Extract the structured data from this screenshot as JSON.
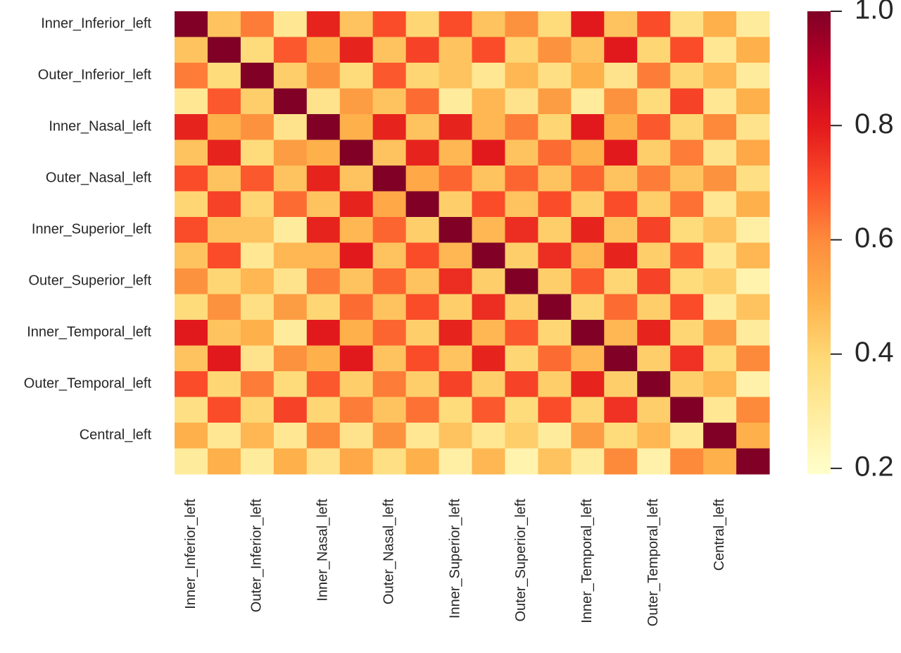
{
  "chart_data": {
    "type": "heatmap",
    "colormap": "YlOrRd",
    "categories": [
      "Inner_Inferior_left",
      null,
      "Outer_Inferior_left",
      null,
      "Inner_Nasal_left",
      null,
      "Outer_Nasal_left",
      null,
      "Inner_Superior_left",
      null,
      "Outer_Superior_left",
      null,
      "Inner_Temporal_left",
      null,
      "Outer_Temporal_left",
      null,
      "Central_left",
      null
    ],
    "values": [
      [
        1,
        0.45,
        0.62,
        0.32,
        0.78,
        0.45,
        0.7,
        0.4,
        0.7,
        0.45,
        0.58,
        0.38,
        0.8,
        0.45,
        0.7,
        0.36,
        0.5,
        0.3
      ],
      [
        0.45,
        1,
        0.38,
        0.68,
        0.5,
        0.78,
        0.45,
        0.72,
        0.45,
        0.7,
        0.4,
        0.58,
        0.45,
        0.8,
        0.4,
        0.7,
        0.32,
        0.5
      ],
      [
        0.62,
        0.38,
        1,
        0.42,
        0.58,
        0.38,
        0.68,
        0.4,
        0.45,
        0.32,
        0.48,
        0.36,
        0.5,
        0.34,
        0.62,
        0.4,
        0.48,
        0.3
      ],
      [
        0.32,
        0.68,
        0.42,
        1,
        0.34,
        0.55,
        0.45,
        0.65,
        0.3,
        0.48,
        0.34,
        0.55,
        0.3,
        0.58,
        0.38,
        0.72,
        0.32,
        0.5
      ],
      [
        0.78,
        0.5,
        0.58,
        0.34,
        1,
        0.5,
        0.78,
        0.45,
        0.78,
        0.48,
        0.62,
        0.4,
        0.8,
        0.5,
        0.68,
        0.4,
        0.6,
        0.34
      ],
      [
        0.45,
        0.78,
        0.38,
        0.55,
        0.5,
        1,
        0.45,
        0.78,
        0.48,
        0.8,
        0.45,
        0.65,
        0.5,
        0.8,
        0.42,
        0.62,
        0.34,
        0.52
      ],
      [
        0.7,
        0.45,
        0.68,
        0.45,
        0.78,
        0.45,
        1,
        0.52,
        0.66,
        0.45,
        0.66,
        0.45,
        0.66,
        0.45,
        0.62,
        0.45,
        0.58,
        0.36
      ],
      [
        0.4,
        0.72,
        0.4,
        0.65,
        0.45,
        0.78,
        0.52,
        1,
        0.42,
        0.7,
        0.45,
        0.7,
        0.42,
        0.7,
        0.42,
        0.64,
        0.32,
        0.5
      ],
      [
        0.7,
        0.45,
        0.45,
        0.3,
        0.78,
        0.48,
        0.66,
        0.42,
        1,
        0.48,
        0.76,
        0.42,
        0.78,
        0.45,
        0.72,
        0.38,
        0.45,
        0.28
      ],
      [
        0.45,
        0.7,
        0.32,
        0.48,
        0.48,
        0.8,
        0.45,
        0.7,
        0.48,
        1,
        0.42,
        0.76,
        0.48,
        0.78,
        0.42,
        0.68,
        0.32,
        0.48
      ],
      [
        0.58,
        0.4,
        0.48,
        0.34,
        0.62,
        0.45,
        0.66,
        0.45,
        0.76,
        0.42,
        1,
        0.42,
        0.68,
        0.4,
        0.72,
        0.38,
        0.42,
        0.26
      ],
      [
        0.38,
        0.58,
        0.36,
        0.55,
        0.4,
        0.65,
        0.45,
        0.7,
        0.42,
        0.76,
        0.42,
        1,
        0.4,
        0.65,
        0.42,
        0.7,
        0.3,
        0.45
      ],
      [
        0.8,
        0.45,
        0.5,
        0.3,
        0.8,
        0.5,
        0.66,
        0.42,
        0.78,
        0.48,
        0.68,
        0.4,
        1,
        0.48,
        0.78,
        0.4,
        0.55,
        0.3
      ],
      [
        0.45,
        0.8,
        0.34,
        0.58,
        0.5,
        0.8,
        0.45,
        0.7,
        0.45,
        0.78,
        0.4,
        0.65,
        0.48,
        1,
        0.42,
        0.75,
        0.38,
        0.6
      ],
      [
        0.7,
        0.4,
        0.62,
        0.38,
        0.68,
        0.42,
        0.62,
        0.42,
        0.72,
        0.42,
        0.72,
        0.42,
        0.78,
        0.42,
        1,
        0.42,
        0.48,
        0.27
      ],
      [
        0.36,
        0.7,
        0.4,
        0.72,
        0.4,
        0.62,
        0.45,
        0.64,
        0.38,
        0.68,
        0.38,
        0.7,
        0.4,
        0.75,
        0.42,
        1,
        0.32,
        0.6
      ],
      [
        0.5,
        0.32,
        0.48,
        0.32,
        0.6,
        0.34,
        0.58,
        0.32,
        0.45,
        0.32,
        0.42,
        0.3,
        0.55,
        0.38,
        0.48,
        0.32,
        1,
        0.5
      ],
      [
        0.3,
        0.5,
        0.3,
        0.5,
        0.34,
        0.52,
        0.36,
        0.5,
        0.28,
        0.48,
        0.26,
        0.45,
        0.3,
        0.6,
        0.27,
        0.6,
        0.5,
        1
      ]
    ],
    "clim": [
      0.19,
      1.0
    ],
    "cticks": [
      0.2,
      0.4,
      0.6,
      0.8,
      {
        "value": 1,
        "label": "1.0"
      }
    ]
  }
}
